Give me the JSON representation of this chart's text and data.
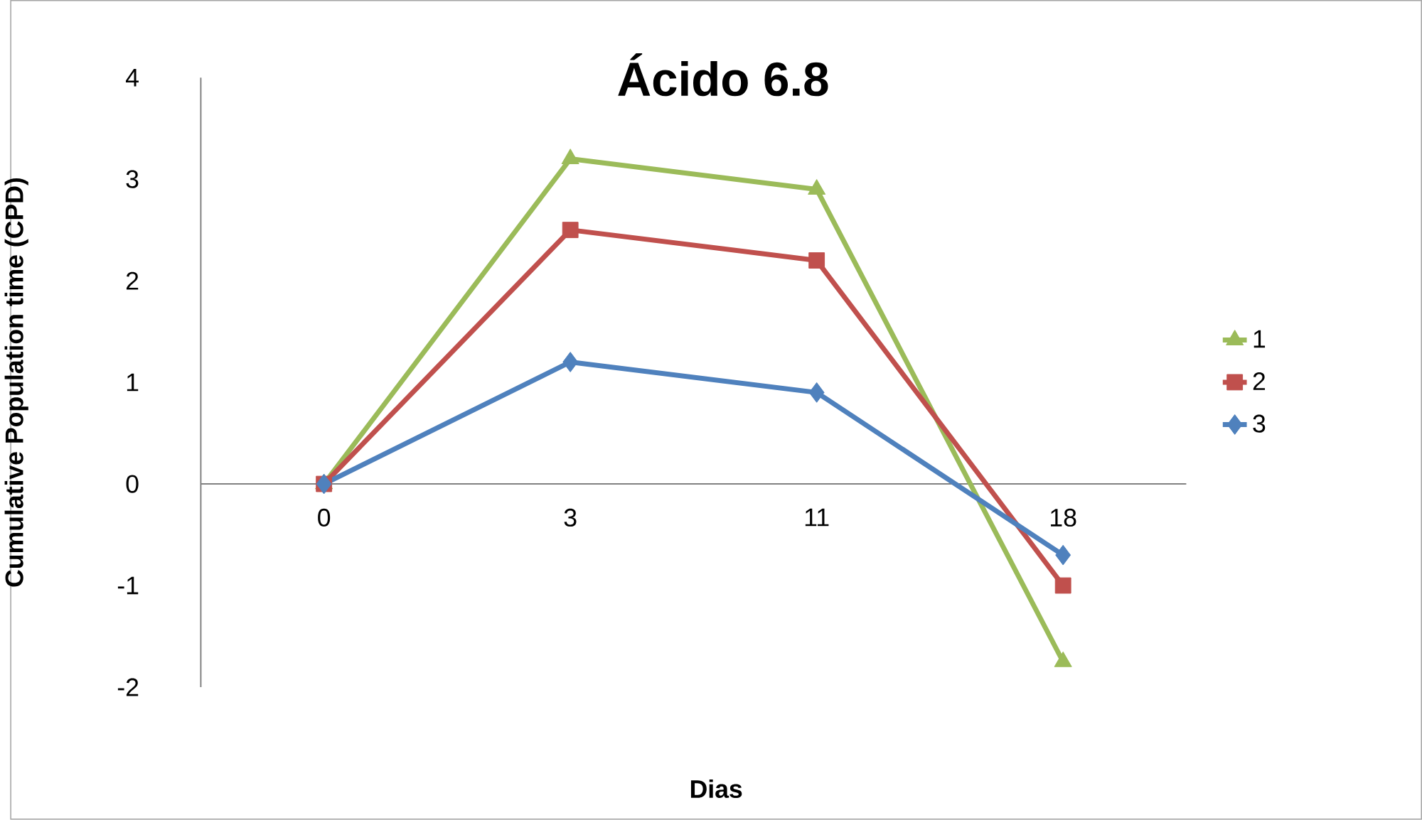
{
  "chart_data": {
    "type": "line",
    "title": "Ácido 6.8",
    "xlabel": "Dias",
    "ylabel": "Cumulative Population time (CPD)",
    "categories": [
      "0",
      "3",
      "11",
      "18"
    ],
    "series": [
      {
        "name": "1",
        "color": "#9bbb59",
        "marker": "triangle",
        "values": [
          0,
          3.2,
          2.9,
          -1.75
        ]
      },
      {
        "name": "2",
        "color": "#c0504d",
        "marker": "square",
        "values": [
          0,
          2.5,
          2.2,
          -1.0
        ]
      },
      {
        "name": "3",
        "color": "#4f81bd",
        "marker": "diamond",
        "values": [
          0,
          1.2,
          0.9,
          -0.7
        ]
      }
    ],
    "ylim": [
      -2,
      4
    ],
    "yticks": [
      -2,
      -1,
      0,
      1,
      2,
      3,
      4
    ],
    "grid": false,
    "legend": "right"
  }
}
